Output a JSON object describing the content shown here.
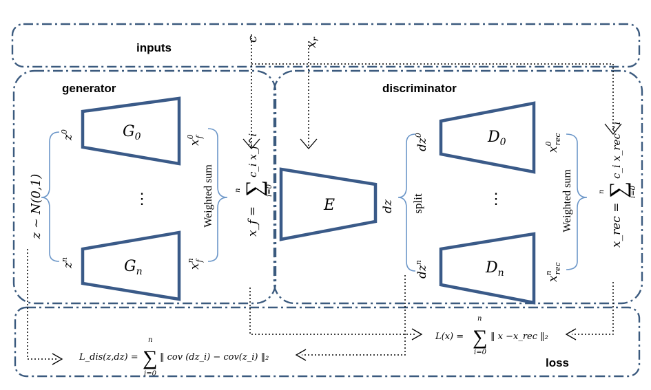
{
  "regions": {
    "inputs": "inputs",
    "generator": "generator",
    "discriminator": "discriminator",
    "loss": "loss"
  },
  "inputs": {
    "c": "c",
    "x_r": "x",
    "x_r_sub": "r"
  },
  "generator": {
    "noise": "z ~ N(0,1)",
    "z0": "z",
    "z0_sup": "0",
    "zn": "z",
    "zn_sup": "n",
    "G0": "G",
    "G0_sub": "0",
    "Gn": "G",
    "Gn_sub": "n",
    "dots": "⋮",
    "xf0": "x",
    "xf0_sub": "f",
    "xf0_sup": "0",
    "xfn": "x",
    "xfn_sub": "f",
    "xfn_sup": "n",
    "weighted_sum": "Weighted sum",
    "sum_formula": "x_f = Σ_{i=0}^{n} c_i x_f^i",
    "sum_lhs": "x_f =",
    "sum_rhs": "c_i x_f^i",
    "sum_top": "n",
    "sum_bottom": "i=0"
  },
  "discriminator": {
    "E": "E",
    "dz": "dz",
    "split": "split",
    "dz0": "dz",
    "dz0_sup": "0",
    "dzn": "dz",
    "dzn_sup": "n",
    "D0": "D",
    "D0_sub": "0",
    "Dn": "D",
    "Dn_sub": "n",
    "dots": "⋮",
    "xrec0": "x",
    "xrec0_sub": "rec",
    "xrec0_sup": "0",
    "xrecn": "x",
    "xrecn_sub": "rec",
    "xrecn_sup": "n",
    "weighted_sum": "Weighted sum",
    "sum_lhs": "x_rec =",
    "sum_rhs": "c_i x_rec^i",
    "sum_top": "n",
    "sum_bottom": "i=0"
  },
  "loss": {
    "recon_lhs": "L(x) =",
    "recon_rhs": "‖ x −x_rec ‖₂",
    "recon_top": "n",
    "recon_bottom": "i=0",
    "dis_lhs": "L_dis(z,dz) =",
    "dis_rhs": "‖ cov (dz_i) − cov(z_i) ‖₂",
    "dis_top": "n",
    "dis_bottom": "i=0",
    "sigma": "∑"
  }
}
